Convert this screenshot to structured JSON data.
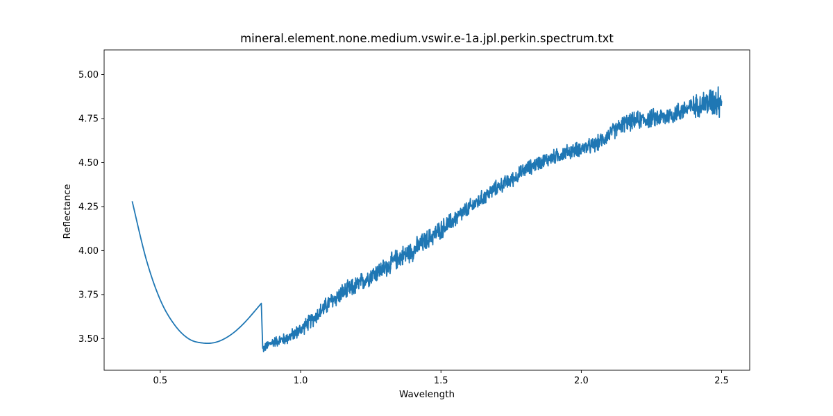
{
  "chart_data": {
    "type": "line",
    "title": "mineral.element.none.medium.vswir.e-1a.jpl.perkin.spectrum.txt",
    "xlabel": "Wavelength",
    "ylabel": "Reflectance",
    "xlim": [
      0.3,
      2.6
    ],
    "ylim": [
      3.32,
      5.14
    ],
    "xticks": [
      0.5,
      1.0,
      1.5,
      2.0,
      2.5
    ],
    "xtick_labels": [
      "0.5",
      "1.0",
      "1.5",
      "2.0",
      "2.5"
    ],
    "yticks": [
      3.5,
      3.75,
      4.0,
      4.25,
      4.5,
      4.75,
      5.0
    ],
    "ytick_labels": [
      "3.50",
      "3.75",
      "4.00",
      "4.25",
      "4.50",
      "4.75",
      "5.00"
    ],
    "grid": false,
    "series": [
      {
        "color": "#1f77b4",
        "smooth_points": [
          [
            0.4,
            4.28
          ],
          [
            0.45,
            3.95
          ],
          [
            0.5,
            3.72
          ],
          [
            0.55,
            3.58
          ],
          [
            0.6,
            3.5
          ],
          [
            0.65,
            3.475
          ],
          [
            0.7,
            3.48
          ],
          [
            0.75,
            3.52
          ],
          [
            0.8,
            3.59
          ],
          [
            0.86,
            3.7
          ]
        ],
        "noisy_points": [
          [
            0.865,
            3.44
          ],
          [
            0.9,
            3.48
          ],
          [
            0.95,
            3.5
          ],
          [
            1.0,
            3.55
          ],
          [
            1.05,
            3.62
          ],
          [
            1.1,
            3.7
          ],
          [
            1.15,
            3.76
          ],
          [
            1.2,
            3.8
          ],
          [
            1.25,
            3.86
          ],
          [
            1.3,
            3.9
          ],
          [
            1.35,
            3.96
          ],
          [
            1.4,
            4.0
          ],
          [
            1.45,
            4.06
          ],
          [
            1.5,
            4.12
          ],
          [
            1.55,
            4.18
          ],
          [
            1.6,
            4.24
          ],
          [
            1.65,
            4.3
          ],
          [
            1.7,
            4.36
          ],
          [
            1.75,
            4.4
          ],
          [
            1.8,
            4.46
          ],
          [
            1.85,
            4.5
          ],
          [
            1.9,
            4.53
          ],
          [
            1.95,
            4.56
          ],
          [
            2.0,
            4.58
          ],
          [
            2.05,
            4.6
          ],
          [
            2.1,
            4.66
          ],
          [
            2.15,
            4.72
          ],
          [
            2.2,
            4.74
          ],
          [
            2.25,
            4.75
          ],
          [
            2.3,
            4.76
          ],
          [
            2.35,
            4.79
          ],
          [
            2.4,
            4.82
          ],
          [
            2.45,
            4.84
          ],
          [
            2.5,
            4.86
          ]
        ],
        "noise_amplitude": [
          [
            0.865,
            0.03
          ],
          [
            1.1,
            0.06
          ],
          [
            1.4,
            0.07
          ],
          [
            1.7,
            0.05
          ],
          [
            2.0,
            0.05
          ],
          [
            2.2,
            0.06
          ],
          [
            2.4,
            0.07
          ],
          [
            2.5,
            0.12
          ]
        ]
      }
    ]
  }
}
